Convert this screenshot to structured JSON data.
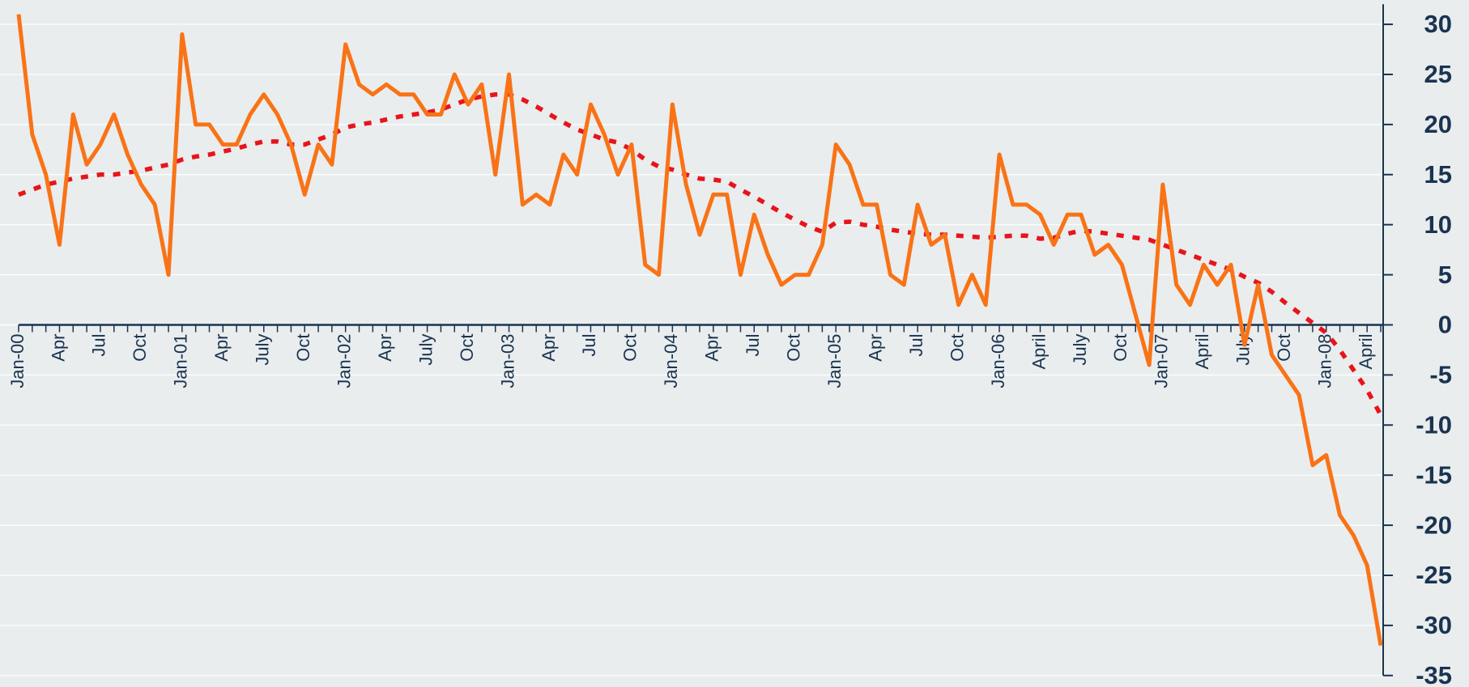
{
  "chart_data": {
    "type": "line",
    "categories": [
      "Jan-00",
      null,
      null,
      "Apr",
      null,
      null,
      "Jul",
      null,
      null,
      "Oct",
      null,
      null,
      "Jan-01",
      null,
      null,
      "Apr",
      null,
      null,
      "July",
      null,
      null,
      "Oct",
      null,
      null,
      "Jan-02",
      null,
      null,
      "Apr",
      null,
      null,
      "July",
      null,
      null,
      "Oct",
      null,
      null,
      "Jan-03",
      null,
      null,
      "Apr",
      null,
      null,
      "Jul",
      null,
      null,
      "Oct",
      null,
      null,
      "Jan-04",
      null,
      null,
      "Apr",
      null,
      null,
      "Jul",
      null,
      null,
      "Oct",
      null,
      null,
      "Jan-05",
      null,
      null,
      "Apr",
      null,
      null,
      "Jul",
      null,
      null,
      "Oct",
      null,
      null,
      "Jan-06",
      null,
      null,
      "April",
      null,
      null,
      "July",
      null,
      null,
      "Oct",
      null,
      null,
      "Jan-07",
      null,
      null,
      "April",
      null,
      null,
      "July",
      null,
      null,
      "Oct",
      null,
      null,
      "Jan-08",
      null,
      null,
      "April",
      null
    ],
    "series": [
      {
        "color": "#f97316",
        "dash": false,
        "values": [
          31,
          19,
          15,
          8,
          21,
          16,
          18,
          21,
          17,
          14,
          12,
          5,
          29,
          20,
          20,
          18,
          18,
          21,
          23,
          21,
          18,
          13,
          18,
          16,
          28,
          24,
          23,
          24,
          23,
          23,
          21,
          21,
          25,
          22,
          24,
          15,
          25,
          12,
          13,
          12,
          17,
          15,
          22,
          19,
          15,
          18,
          6,
          5,
          22,
          14,
          9,
          13,
          13,
          5,
          11,
          7,
          4,
          5,
          5,
          8,
          18,
          16,
          12,
          12,
          5,
          4,
          12,
          8,
          9,
          2,
          5,
          2,
          17,
          12,
          12,
          11,
          8,
          11,
          11,
          7,
          8,
          6,
          1,
          -4,
          14,
          4,
          2,
          6,
          4,
          6,
          -2,
          4,
          -3,
          -5,
          -7,
          -14,
          -13,
          -19,
          -21,
          -24,
          -32
        ]
      },
      {
        "color": "#e8141b",
        "dash": true,
        "values": [
          13,
          13.5,
          14,
          14.3,
          14.6,
          14.8,
          15,
          15,
          15.2,
          15.4,
          15.7,
          16,
          16.5,
          16.8,
          17,
          17.3,
          17.6,
          18,
          18.3,
          18.3,
          18,
          18,
          18.5,
          19,
          19.7,
          20,
          20.2,
          20.5,
          20.8,
          21,
          21.2,
          21.5,
          22,
          22.5,
          22.8,
          23,
          23,
          22.5,
          21.8,
          21,
          20.2,
          19.5,
          19,
          18.5,
          18.2,
          17.5,
          16.5,
          15.8,
          15.5,
          15,
          14.6,
          14.5,
          14.3,
          13.5,
          12.8,
          12,
          11.2,
          10.5,
          9.8,
          9.3,
          10.2,
          10.3,
          10,
          9.8,
          9.5,
          9.3,
          9.1,
          9,
          9,
          8.9,
          8.8,
          8.7,
          8.8,
          8.9,
          8.9,
          8.6,
          8.7,
          9.1,
          9.4,
          9.3,
          9.1,
          8.9,
          8.7,
          8.5,
          8,
          7.5,
          7,
          6.5,
          6,
          5.5,
          4.8,
          4.2,
          3.3,
          2.2,
          1.2,
          0.2,
          -0.8,
          -2.5,
          -4.5,
          -6.5,
          -9
        ]
      }
    ],
    "ylim": [
      -35,
      32
    ],
    "yticks": [
      30,
      25,
      20,
      15,
      10,
      5,
      0,
      -5,
      -10,
      -15,
      -20,
      -25,
      -30,
      -35
    ],
    "grid": true
  }
}
